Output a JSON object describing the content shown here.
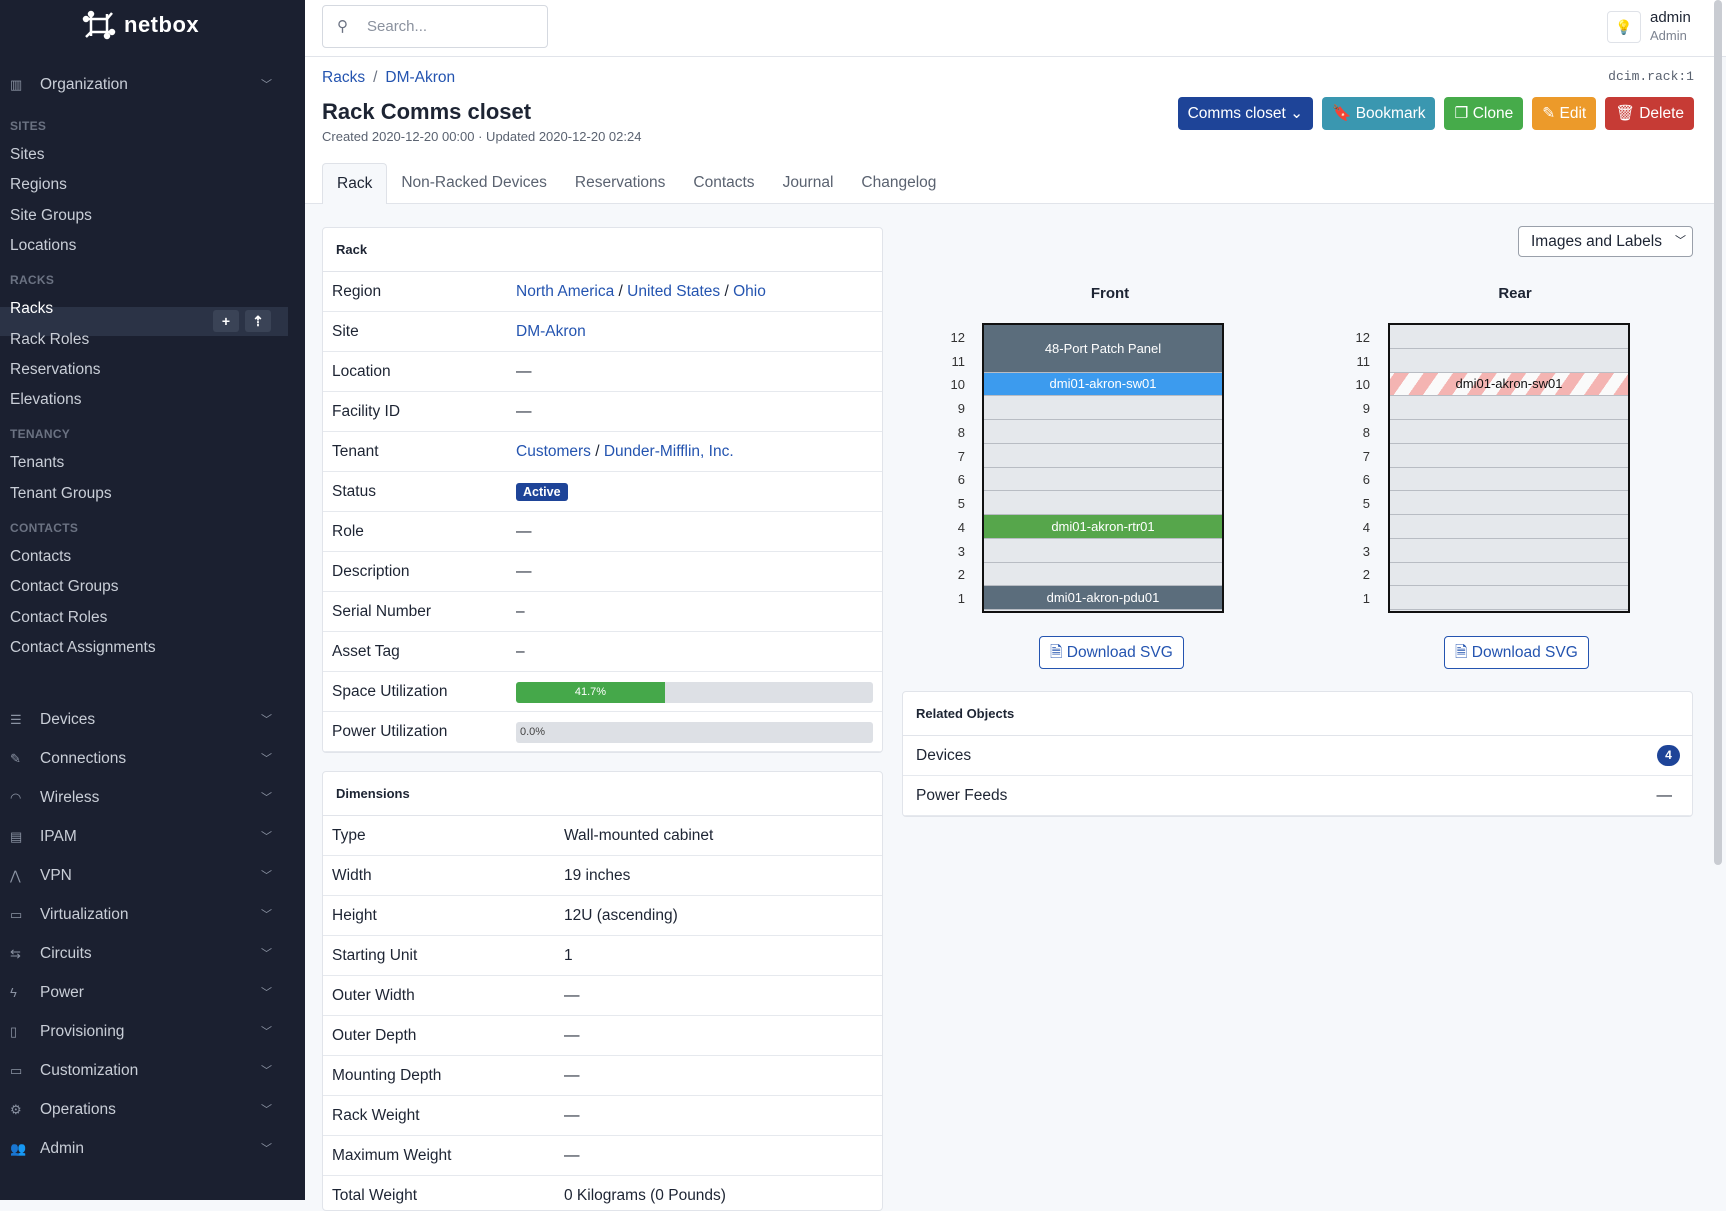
{
  "app": {
    "logo_text": "netbox"
  },
  "sidebar": {
    "organization": "Organization",
    "sections": [
      {
        "title": "SITES",
        "items": [
          "Sites",
          "Regions",
          "Site Groups",
          "Locations"
        ]
      },
      {
        "title": "RACKS",
        "items": [
          "Racks",
          "Rack Roles",
          "Reservations",
          "Elevations"
        ]
      },
      {
        "title": "TENANCY",
        "items": [
          "Tenants",
          "Tenant Groups"
        ]
      },
      {
        "title": "CONTACTS",
        "items": [
          "Contacts",
          "Contact Groups",
          "Contact Roles",
          "Contact Assignments"
        ]
      }
    ],
    "active": "Racks",
    "menus": [
      {
        "label": "Devices",
        "icon": "server-icon"
      },
      {
        "label": "Connections",
        "icon": "plug-icon"
      },
      {
        "label": "Wireless",
        "icon": "wifi-icon"
      },
      {
        "label": "IPAM",
        "icon": "ip-icon"
      },
      {
        "label": "VPN",
        "icon": "vpn-icon"
      },
      {
        "label": "Virtualization",
        "icon": "monitor-icon"
      },
      {
        "label": "Circuits",
        "icon": "circuit-icon"
      },
      {
        "label": "Power",
        "icon": "bolt-icon"
      },
      {
        "label": "Provisioning",
        "icon": "file-icon"
      },
      {
        "label": "Customization",
        "icon": "toolbox-icon"
      },
      {
        "label": "Operations",
        "icon": "cogs-icon"
      },
      {
        "label": "Admin",
        "icon": "users-icon"
      }
    ]
  },
  "topbar": {
    "search_placeholder": "Search...",
    "user": "admin",
    "role": "Admin"
  },
  "breadcrumb": [
    "Racks",
    "DM-Akron"
  ],
  "object_id": "dcim.rack:1",
  "title": "Rack Comms closet",
  "subtitle": "Created 2020-12-20 00:00 · Updated 2020-12-20 02:24",
  "actions": [
    {
      "label": "Comms closet",
      "color": "#1e4498",
      "icon": "chevron-down-icon"
    },
    {
      "label": "Bookmark",
      "color": "#3a97b0",
      "icon": "bookmark-icon"
    },
    {
      "label": "Clone",
      "color": "#46ab4a",
      "icon": "copy-icon"
    },
    {
      "label": "Edit",
      "color": "#ec9a2a",
      "icon": "pencil-icon"
    },
    {
      "label": "Delete",
      "color": "#c63b35",
      "icon": "trash-icon"
    }
  ],
  "tabs": [
    "Rack",
    "Non-Racked Devices",
    "Reservations",
    "Contacts",
    "Journal",
    "Changelog"
  ],
  "rack_card": {
    "title": "Rack",
    "rows": [
      {
        "k": "Region",
        "links": [
          "North America",
          "United States",
          "Ohio"
        ]
      },
      {
        "k": "Site",
        "links": [
          "DM-Akron"
        ]
      },
      {
        "k": "Location",
        "v": "—"
      },
      {
        "k": "Facility ID",
        "v": "—"
      },
      {
        "k": "Tenant",
        "links": [
          "Customers",
          "Dunder-Mifflin, Inc."
        ]
      },
      {
        "k": "Status",
        "badge": "Active"
      },
      {
        "k": "Role",
        "v": "—"
      },
      {
        "k": "Description",
        "v": "—"
      },
      {
        "k": "Serial Number",
        "v": "–"
      },
      {
        "k": "Asset Tag",
        "v": "–"
      },
      {
        "k": "Space Utilization",
        "progress": 41.7,
        "label": "41.7%"
      },
      {
        "k": "Power Utilization",
        "progress": 0,
        "label": "0.0%"
      }
    ]
  },
  "dimensions": {
    "title": "Dimensions",
    "rows": [
      [
        "Type",
        "Wall-mounted cabinet"
      ],
      [
        "Width",
        "19 inches"
      ],
      [
        "Height",
        "12U (ascending)"
      ],
      [
        "Starting Unit",
        "1"
      ],
      [
        "Outer Width",
        "—"
      ],
      [
        "Outer Depth",
        "—"
      ],
      [
        "Mounting Depth",
        "—"
      ],
      [
        "Rack Weight",
        "—"
      ],
      [
        "Maximum Weight",
        "—"
      ],
      [
        "Total Weight",
        "0 Kilograms (0 Pounds)"
      ]
    ]
  },
  "elevation": {
    "display_select": "Images and Labels",
    "units": 12,
    "front": {
      "label": "Front",
      "devices": [
        {
          "name": "48-Port Patch Panel",
          "top": 12,
          "height": 2,
          "color": "#5b6d7c"
        },
        {
          "name": "dmi01-akron-sw01",
          "top": 10,
          "height": 1,
          "color": "#3c9bee"
        },
        {
          "name": "dmi01-akron-rtr01",
          "top": 4,
          "height": 1,
          "color": "#56a64b"
        },
        {
          "name": "dmi01-akron-pdu01",
          "top": 1,
          "height": 1,
          "color": "#5b6d7c"
        }
      ]
    },
    "rear": {
      "label": "Rear",
      "devices": [
        {
          "name": "dmi01-akron-sw01",
          "top": 10,
          "height": 1,
          "color": "striped"
        }
      ]
    },
    "download_label": "Download SVG"
  },
  "related": {
    "title": "Related Objects",
    "rows": [
      {
        "label": "Devices",
        "count": "4"
      },
      {
        "label": "Power Feeds",
        "count": "—"
      }
    ]
  }
}
